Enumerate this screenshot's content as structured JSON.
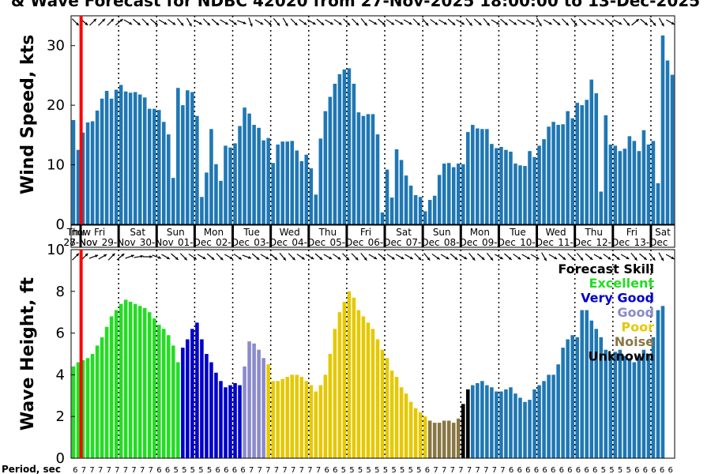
{
  "title": "& Wave Forecast for NDBC 42020 from 27-Nov-2025 18:00:00 to 13-Dec-2025",
  "now_label": "now",
  "period_label": "Period, sec",
  "colors": {
    "bar": "#1f77b4",
    "now_line": "#ff0000",
    "skill": {
      "Excellent": "#22dd22",
      "Very Good": "#0000cc",
      "Good": "#8a8acc",
      "Poor": "#e6c800",
      "Noise": "#887744",
      "Unknown": "#000000"
    }
  },
  "days": [
    {
      "dow": "Thu",
      "date": "27-Nov"
    },
    {
      "dow": "Fri",
      "date": "28-Nov"
    },
    {
      "dow": "Sat",
      "date": "29-Nov"
    },
    {
      "dow": "Sun",
      "date": "30-Nov"
    },
    {
      "dow": "Mon",
      "date": "01-Dec"
    },
    {
      "dow": "Tue",
      "date": "02-Dec"
    },
    {
      "dow": "Wed",
      "date": "03-Dec"
    },
    {
      "dow": "Thu",
      "date": "04-Dec"
    },
    {
      "dow": "Fri",
      "date": "05-Dec"
    },
    {
      "dow": "Sat",
      "date": "06-Dec"
    },
    {
      "dow": "Sun",
      "date": "07-Dec"
    },
    {
      "dow": "Mon",
      "date": "08-Dec"
    },
    {
      "dow": "Tue",
      "date": "09-Dec"
    },
    {
      "dow": "Wed",
      "date": "10-Dec"
    },
    {
      "dow": "Thu",
      "date": "11-Dec"
    },
    {
      "dow": "Fri",
      "date": "12-Dec"
    },
    {
      "dow": "Sat",
      "date": "13-Dec"
    }
  ],
  "legend": {
    "title": "Forecast Skill",
    "items": [
      "Excellent",
      "Very Good",
      "Good",
      "Poor",
      "Noise",
      "Unknown"
    ]
  },
  "chart_data": [
    {
      "type": "bar",
      "name": "wind",
      "ylabel": "Wind Speed, kts",
      "ylim": [
        0,
        35
      ],
      "yticks": [
        0,
        10,
        20,
        30
      ],
      "start": "27-Nov-2025 18:00",
      "step_hours": 3,
      "values": [
        17.5,
        12.5,
        15.4,
        17.1,
        17.3,
        19.1,
        21.1,
        22.4,
        21.1,
        22.6,
        23.4,
        22.3,
        22.1,
        22.2,
        21.8,
        21.3,
        19.4,
        19.4,
        19.2,
        17.2,
        15.1,
        7.8,
        22.9,
        20.0,
        22.5,
        22.2,
        18.2,
        4.6,
        8.7,
        16.0,
        10.1,
        7.3,
        13.2,
        12.9,
        13.6,
        16.5,
        19.6,
        18.6,
        16.7,
        16.2,
        14.1,
        14.5,
        10.3,
        13.4,
        13.9,
        13.9,
        14.0,
        12.4,
        10.6,
        11.7,
        9.4,
        5.0,
        14.4,
        19.0,
        21.4,
        23.6,
        25.2,
        26.0,
        26.2,
        23.6,
        18.8,
        18.2,
        18.5,
        18.5,
        15.1,
        2.0,
        9.2,
        4.5,
        12.6,
        10.8,
        8.2,
        6.5,
        4.9,
        4.6,
        2.2,
        4.1,
        4.8,
        8.3,
        10.2,
        10.3,
        9.6,
        10.2,
        10.1,
        15.5,
        16.7,
        16.1,
        16.0,
        16.0,
        13.5,
        12.8,
        13.0,
        12.5,
        12.2,
        10.2,
        9.9,
        9.8,
        12.3,
        11.3,
        13.2,
        14.3,
        16.4,
        17.2,
        16.7,
        16.8,
        19.0,
        17.8,
        20.4,
        20.0,
        20.9,
        24.3,
        22.0,
        5.5,
        18.3,
        13.4,
        13.2,
        12.3,
        12.7,
        14.8,
        14.0,
        12.3,
        15.8,
        13.4,
        14.0,
        6.9,
        31.7,
        27.5,
        25.1
      ],
      "wind_dirs_deg": [
        315,
        310,
        225,
        225,
        225,
        230,
        300,
        310,
        315,
        310,
        300,
        305,
        320,
        330,
        300,
        315,
        310,
        300,
        305,
        290,
        340,
        300,
        310,
        320,
        330,
        315,
        305,
        300,
        310,
        300,
        305,
        315,
        315,
        320,
        300,
        310,
        305,
        300,
        300,
        315,
        320,
        305,
        300,
        310,
        300,
        320,
        310,
        320,
        300,
        310,
        305,
        300,
        300,
        330,
        300,
        310,
        315,
        320,
        310,
        300,
        305,
        310,
        300,
        320,
        230,
        310,
        320,
        330,
        300
      ]
    },
    {
      "type": "bar",
      "name": "wave",
      "ylabel": "Wave Height, ft",
      "ylim": [
        0,
        10
      ],
      "yticks": [
        0,
        2,
        4,
        6,
        8,
        10
      ],
      "start": "27-Nov-2025 18:00",
      "step_hours": 3,
      "values": [
        4.4,
        4.6,
        4.7,
        4.8,
        5.0,
        5.4,
        5.8,
        6.3,
        6.8,
        7.1,
        7.4,
        7.6,
        7.5,
        7.4,
        7.3,
        7.2,
        7.0,
        6.7,
        6.4,
        6.2,
        5.9,
        5.4,
        4.6,
        5.3,
        5.7,
        6.2,
        6.5,
        5.7,
        5.0,
        4.6,
        4.1,
        3.7,
        3.4,
        3.5,
        3.6,
        3.5,
        4.4,
        5.6,
        5.5,
        5.2,
        4.8,
        4.5,
        3.7,
        3.7,
        3.8,
        3.9,
        4.0,
        4.0,
        3.9,
        3.7,
        3.5,
        3.2,
        3.5,
        4.0,
        5.0,
        6.2,
        7.0,
        7.5,
        8.0,
        7.7,
        7.1,
        6.8,
        6.5,
        6.2,
        5.7,
        5.2,
        4.8,
        4.2,
        3.9,
        3.4,
        3.1,
        2.7,
        2.4,
        2.2,
        2.0,
        1.8,
        1.7,
        1.7,
        1.8,
        1.8,
        1.7,
        1.9,
        2.6,
        3.3,
        3.5,
        3.6,
        3.7,
        3.5,
        3.4,
        3.2,
        3.2,
        3.3,
        3.4,
        3.1,
        2.9,
        2.7,
        2.8,
        3.3,
        3.5,
        3.7,
        4.0,
        4.0,
        4.5,
        5.3,
        5.7,
        5.9,
        5.8,
        7.1,
        7.1,
        6.6,
        6.2,
        5.8,
        5.2,
        5.0,
        5.1,
        5.2,
        4.9,
        4.8,
        4.6,
        4.9,
        5.2,
        5.0,
        5.8,
        7.1,
        7.3
      ],
      "skill": [
        "Excellent",
        "Excellent",
        "Excellent",
        "Excellent",
        "Excellent",
        "Excellent",
        "Excellent",
        "Excellent",
        "Excellent",
        "Excellent",
        "Excellent",
        "Excellent",
        "Excellent",
        "Excellent",
        "Excellent",
        "Excellent",
        "Excellent",
        "Excellent",
        "Excellent",
        "Excellent",
        "Excellent",
        "Excellent",
        "Excellent",
        "Very Good",
        "Very Good",
        "Very Good",
        "Very Good",
        "Very Good",
        "Very Good",
        "Very Good",
        "Very Good",
        "Very Good",
        "Very Good",
        "Very Good",
        "Very Good",
        "Very Good",
        "Good",
        "Good",
        "Good",
        "Good",
        "Good",
        "Poor",
        "Poor",
        "Poor",
        "Poor",
        "Poor",
        "Poor",
        "Poor",
        "Poor",
        "Poor",
        "Poor",
        "Poor",
        "Poor",
        "Poor",
        "Poor",
        "Poor",
        "Poor",
        "Poor",
        "Poor",
        "Poor",
        "Poor",
        "Poor",
        "Poor",
        "Poor",
        "Poor",
        "Poor",
        "Poor",
        "Poor",
        "Poor",
        "Poor",
        "Poor",
        "Poor",
        "Poor",
        "Poor",
        "Poor",
        "Noise",
        "Noise",
        "Noise",
        "Noise",
        "Noise",
        "Noise",
        "Noise",
        "Unknown",
        "Unknown",
        "",
        "",
        "",
        "",
        "",
        "",
        "",
        "",
        "",
        "",
        "",
        "",
        "",
        "",
        "",
        "",
        "",
        "",
        "",
        "",
        "",
        "",
        "",
        "",
        "",
        "",
        "",
        "",
        "",
        "",
        "",
        "",
        "",
        "",
        "",
        "",
        "",
        "",
        "",
        "",
        "",
        ""
      ],
      "wave_dirs_deg": [
        225,
        225,
        250,
        240,
        225,
        230,
        250,
        260,
        270,
        290,
        300,
        310,
        315,
        305,
        300,
        310,
        315,
        300,
        305,
        290,
        310,
        300,
        310,
        320,
        315,
        305,
        300,
        310,
        300,
        305,
        315,
        315,
        320,
        300,
        310,
        305,
        300,
        300,
        315,
        320,
        305,
        300,
        310,
        300,
        320,
        310,
        320,
        300,
        310,
        305,
        300,
        300,
        330,
        300,
        310,
        315,
        320,
        310,
        300,
        305,
        310,
        300,
        320,
        310,
        320,
        330,
        300
      ],
      "period_sec": [
        6,
        7,
        7,
        7,
        7,
        7,
        7,
        7,
        7,
        7,
        6,
        6,
        5,
        5,
        5,
        5,
        5,
        6,
        6,
        6,
        6,
        7,
        7,
        7,
        7,
        7,
        7,
        7,
        7,
        7,
        6,
        6,
        5,
        5,
        5,
        5,
        5,
        5,
        5,
        5,
        5,
        5,
        6,
        7,
        7,
        7,
        7,
        7,
        7,
        7,
        7,
        7,
        6,
        6,
        6,
        6,
        6,
        6,
        6,
        6,
        6,
        6,
        6,
        5,
        5,
        5,
        5,
        6,
        6,
        6,
        6,
        6
      ]
    }
  ]
}
